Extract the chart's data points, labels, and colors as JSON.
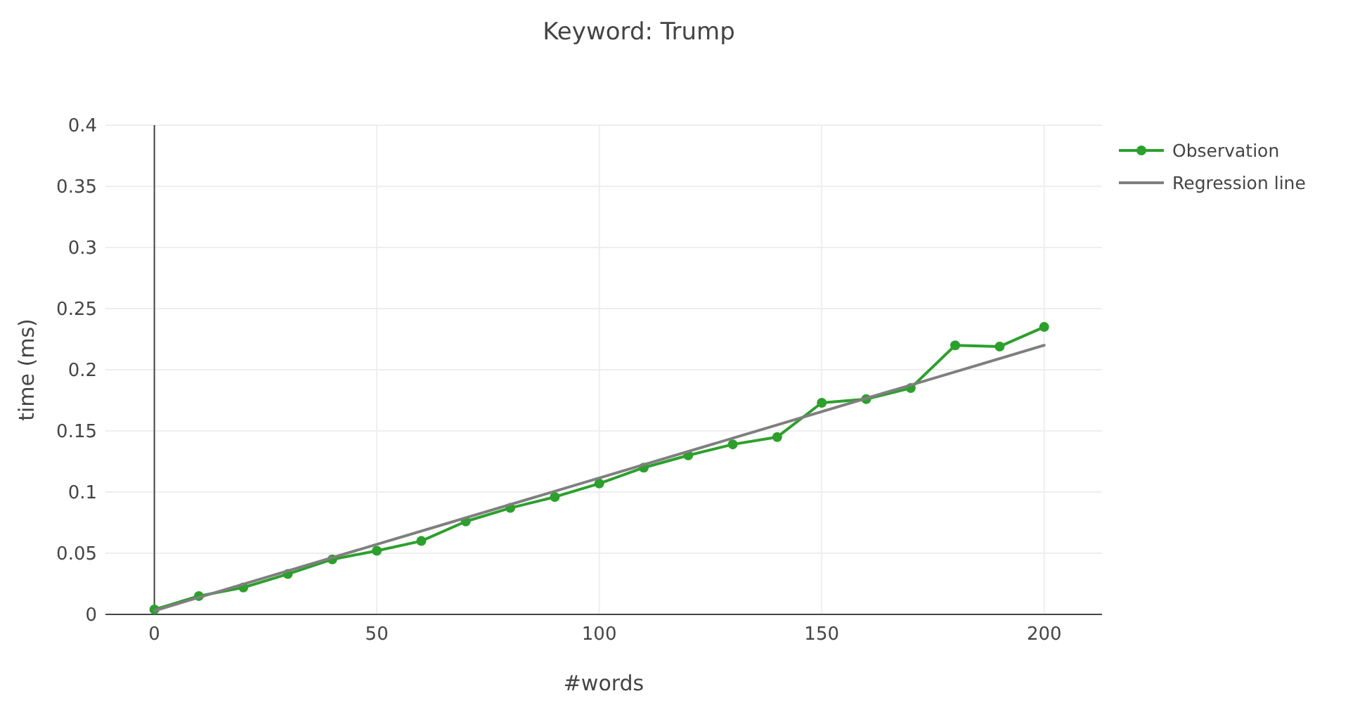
{
  "chart_data": {
    "type": "line",
    "title": "Keyword: Trump",
    "xlabel": "#words",
    "ylabel": "time (ms)",
    "xlim": [
      -11,
      213
    ],
    "xticks": [
      0,
      50,
      100,
      150,
      200
    ],
    "ylim": [
      0,
      0.4
    ],
    "yticks": [
      0,
      0.05,
      0.1,
      0.15,
      0.2,
      0.25,
      0.3,
      0.35,
      0.4
    ],
    "grid": true,
    "legend": "top right",
    "marker": "circle",
    "ref_lines": [
      {
        "axis": "x",
        "value": 0,
        "color": "#444444"
      }
    ],
    "series": [
      {
        "name": "Observation",
        "color": "#2ca02c",
        "x": [
          0,
          10,
          20,
          30,
          40,
          50,
          60,
          70,
          80,
          90,
          100,
          110,
          120,
          130,
          140,
          150,
          160,
          170,
          180,
          190,
          200
        ],
        "values": [
          0.004,
          0.015,
          0.022,
          0.033,
          0.045,
          0.052,
          0.06,
          0.076,
          0.087,
          0.096,
          0.107,
          0.12,
          0.13,
          0.139,
          0.145,
          0.173,
          0.176,
          0.185,
          0.22,
          0.219,
          0.235
        ]
      },
      {
        "name": "Regression line",
        "color": "#7f7f7f",
        "marker": "none",
        "x": [
          0,
          200
        ],
        "values": [
          0.003,
          0.22
        ]
      }
    ]
  }
}
